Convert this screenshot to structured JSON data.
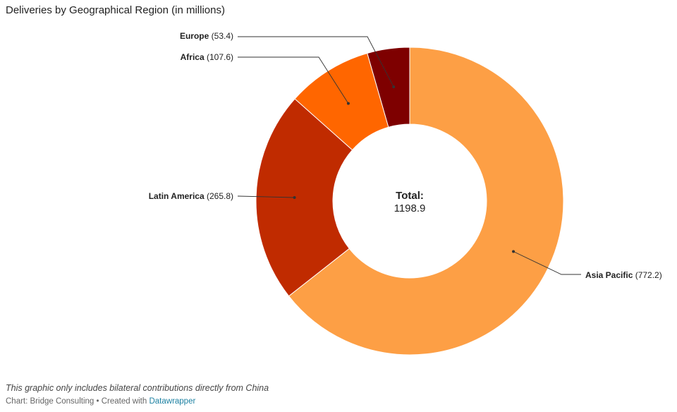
{
  "title": "Deliveries by Geographical Region (in millions)",
  "footnote": "This graphic only includes bilateral contributions directly from China",
  "byline": {
    "source": "Chart: Bridge Consulting • Created with",
    "tool": "Datawrapper"
  },
  "center_label": {
    "title": "Total:",
    "value": "1198.9"
  },
  "chart_data": {
    "type": "pie",
    "variant": "donut",
    "title": "Deliveries by Geographical Region (in millions)",
    "total": 1198.9,
    "slices": [
      {
        "name": "Asia Pacific",
        "value": 772.2,
        "display": "(772.2)",
        "color": "#fd9f45"
      },
      {
        "name": "Latin America",
        "value": 265.8,
        "display": "(265.8)",
        "color": "#c02b00"
      },
      {
        "name": "Africa",
        "value": 107.6,
        "display": "(107.6)",
        "color": "#ff6600"
      },
      {
        "name": "Europe",
        "value": 53.4,
        "display": "(53.4)",
        "color": "#7e0000"
      }
    ]
  }
}
